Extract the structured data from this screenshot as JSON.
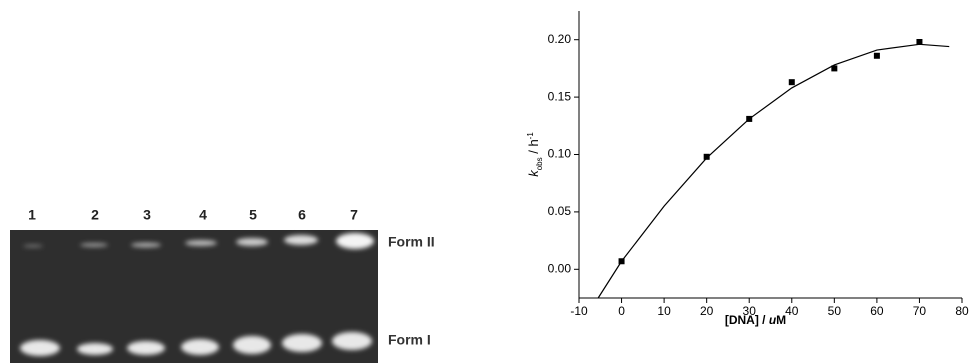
{
  "gel": {
    "lanes": [
      "1",
      "2",
      "3",
      "4",
      "5",
      "6",
      "7"
    ],
    "form_upper": "Form II",
    "form_lower": "Form I"
  },
  "chart_data": {
    "type": "scatter",
    "x": [
      0,
      20,
      30,
      40,
      50,
      60,
      70
    ],
    "values": [
      0.007,
      0.098,
      0.131,
      0.163,
      0.175,
      0.186,
      0.198
    ],
    "color": "#000000",
    "fit": {
      "x": [
        -5.5,
        0,
        10,
        20,
        30,
        40,
        50,
        60,
        70,
        77
      ],
      "values": [
        -0.025,
        0.007,
        0.055,
        0.097,
        0.131,
        0.158,
        0.178,
        0.191,
        0.196,
        0.194
      ]
    },
    "xlim": [
      -10,
      80
    ],
    "ylim": [
      -0.025,
      0.225
    ],
    "xticks": [
      -10,
      0,
      10,
      20,
      30,
      40,
      50,
      60,
      70,
      80
    ],
    "yticks": [
      {
        "value": 0,
        "label": "0.00"
      },
      {
        "value": 0.05,
        "label": "0.05"
      },
      {
        "value": 0.1,
        "label": "0.10"
      },
      {
        "value": 0.15,
        "label": "0.15"
      },
      {
        "value": 0.2,
        "label": "0.20"
      }
    ],
    "xlabel_parts": [
      "[DNA] / ",
      "u",
      "M"
    ],
    "ylabel_parts": [
      "k",
      "obs",
      " / h",
      "-1"
    ]
  }
}
